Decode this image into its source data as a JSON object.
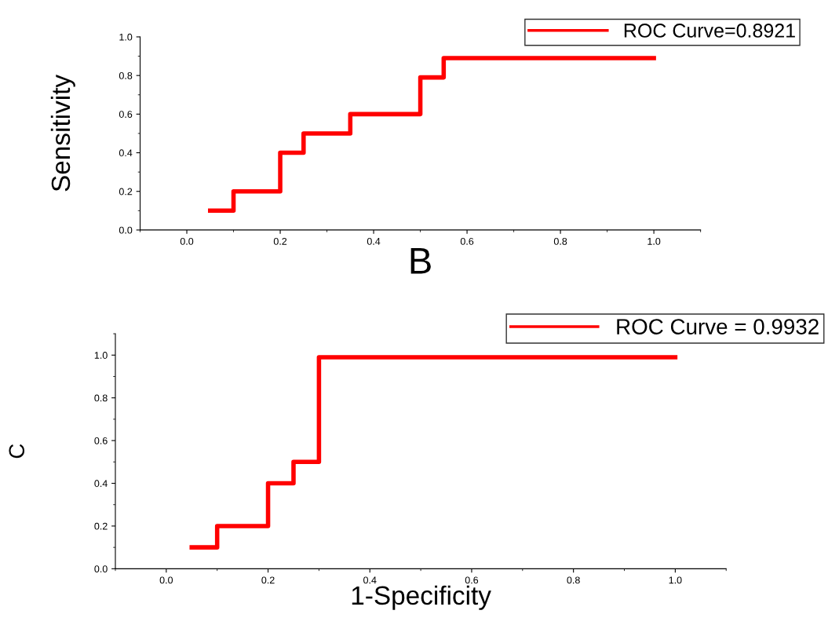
{
  "chart_data": [
    {
      "type": "step",
      "ylabel": "Sensitivity",
      "xlabel": "B",
      "xlim": [
        -0.1,
        1.1
      ],
      "ylim": [
        0.0,
        1.0
      ],
      "xticks": [
        {
          "value": 0,
          "label": "0.0"
        },
        {
          "value": 0.2,
          "label": "0.2"
        },
        {
          "value": 0.4,
          "label": "0.4"
        },
        {
          "value": 0.6,
          "label": "0.6"
        },
        {
          "value": 0.8,
          "label": "0.8"
        },
        {
          "value": 1,
          "label": "1.0"
        }
      ],
      "yticks": [
        {
          "value": 0,
          "label": "0.0"
        },
        {
          "value": 0.2,
          "label": "0.2"
        },
        {
          "value": 0.4,
          "label": "0.4"
        },
        {
          "value": 0.6,
          "label": "0.6"
        },
        {
          "value": 0.8,
          "label": "0.8"
        },
        {
          "value": 1,
          "label": "1.0"
        }
      ],
      "x": [
        0.05,
        0.1,
        0.2,
        0.25,
        0.35,
        0.5,
        0.55,
        1.0
      ],
      "series": [
        {
          "name": "ROC Curve=0.8921",
          "color": "#ff0000",
          "values": [
            0.1,
            0.2,
            0.4,
            0.5,
            0.6,
            0.79,
            0.89,
            0.89
          ]
        }
      ],
      "legend": "top right",
      "grid": false,
      "marker": "none",
      "line_style": "solid"
    },
    {
      "type": "step",
      "ylabel": "C",
      "xlabel": "1-Specificity",
      "xlim": [
        -0.1,
        1.1
      ],
      "ylim": [
        0.0,
        1.1
      ],
      "xticks": [
        {
          "value": 0,
          "label": "0.0"
        },
        {
          "value": 0.2,
          "label": "0.2"
        },
        {
          "value": 0.4,
          "label": "0.4"
        },
        {
          "value": 0.6,
          "label": "0.6"
        },
        {
          "value": 0.8,
          "label": "0.8"
        },
        {
          "value": 1,
          "label": "1.0"
        }
      ],
      "yticks": [
        {
          "value": 0,
          "label": "0.0"
        },
        {
          "value": 0.2,
          "label": "0.2"
        },
        {
          "value": 0.4,
          "label": "0.4"
        },
        {
          "value": 0.6,
          "label": "0.6"
        },
        {
          "value": 0.8,
          "label": "0.8"
        },
        {
          "value": 1,
          "label": "1.0"
        }
      ],
      "x": [
        0.05,
        0.1,
        0.2,
        0.25,
        0.3,
        1.0
      ],
      "series": [
        {
          "name": "ROC Curve = 0.9932",
          "color": "#ff0000",
          "values": [
            0.1,
            0.2,
            0.4,
            0.5,
            0.99,
            0.99
          ]
        }
      ],
      "legend": "top right",
      "grid": false,
      "marker": "none",
      "line_style": "solid"
    }
  ]
}
